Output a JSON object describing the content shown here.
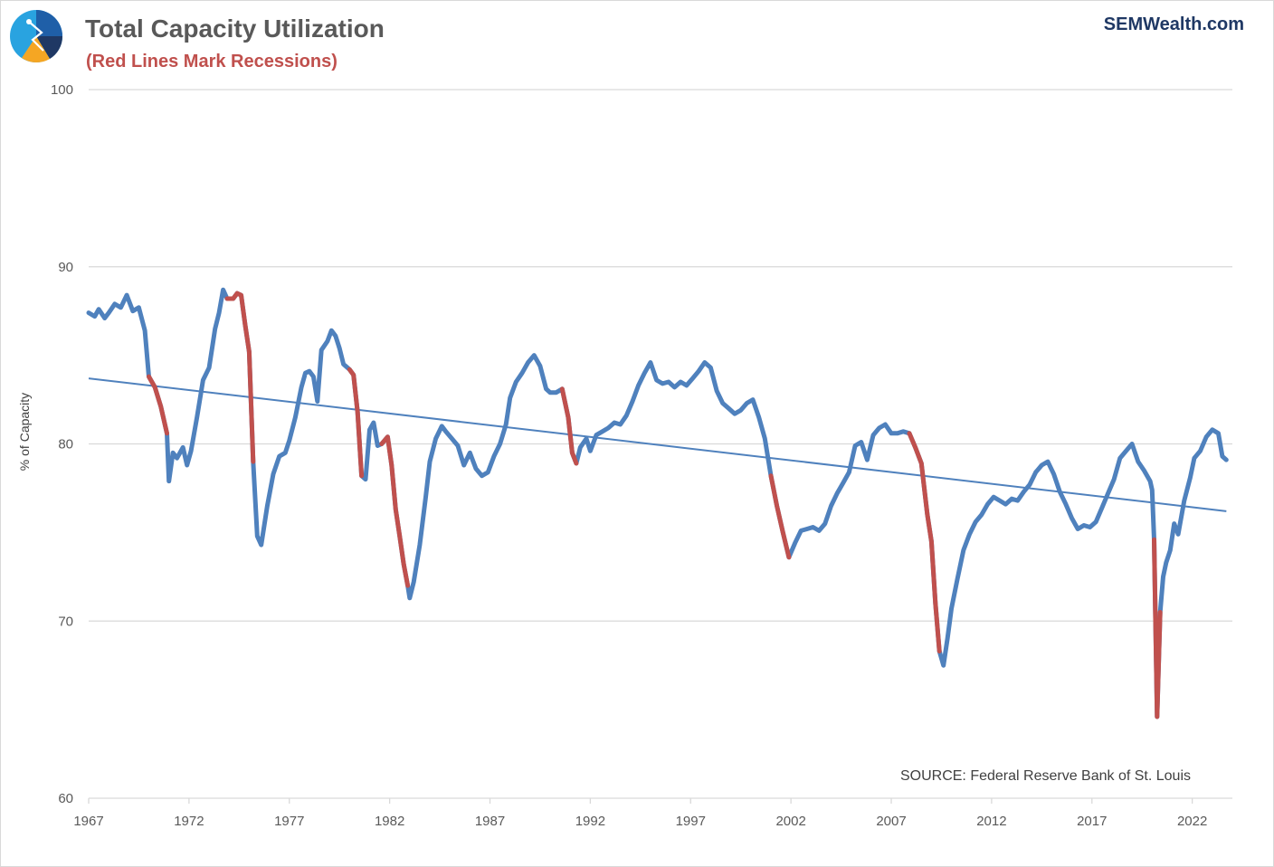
{
  "header": {
    "title": "Total Capacity Utilization",
    "subtitle": "(Red Lines Mark Recessions)",
    "brand": "SEMWealth.com",
    "logo_icon": "sem-wealth-logo-icon"
  },
  "colors": {
    "series": "#4f81bd",
    "recession": "#c0504d",
    "trend": "#4f81bd",
    "grid": "#d9d9d9",
    "title": "#595959",
    "subtitle": "#c0504d",
    "brand": "#1f3864"
  },
  "chart_data": {
    "type": "line",
    "title": "Total Capacity Utilization",
    "subtitle": "(Red Lines Mark Recessions)",
    "xlabel": "",
    "ylabel": "% of Capacity",
    "xlim": [
      1967,
      2024
    ],
    "ylim": [
      60,
      100
    ],
    "x_ticks": [
      1967,
      1972,
      1977,
      1982,
      1987,
      1992,
      1997,
      2002,
      2007,
      2012,
      2017,
      2022
    ],
    "y_ticks": [
      60,
      70,
      80,
      90,
      100
    ],
    "grid": "horizontal",
    "legend": "none",
    "annotation": "SOURCE:  Federal Reserve Bank of St. Louis",
    "series": [
      {
        "name": "Total Capacity Utilization",
        "points": [
          [
            1967.0,
            87.4
          ],
          [
            1967.3,
            87.2
          ],
          [
            1967.5,
            87.6
          ],
          [
            1967.8,
            87.1
          ],
          [
            1968.0,
            87.4
          ],
          [
            1968.3,
            87.9
          ],
          [
            1968.6,
            87.7
          ],
          [
            1968.9,
            88.4
          ],
          [
            1969.2,
            87.5
          ],
          [
            1969.5,
            87.7
          ],
          [
            1969.8,
            86.4
          ],
          [
            1970.0,
            83.8
          ],
          [
            1970.3,
            83.2
          ],
          [
            1970.6,
            82.1
          ],
          [
            1970.9,
            80.6
          ],
          [
            1971.0,
            77.9
          ],
          [
            1971.2,
            79.5
          ],
          [
            1971.4,
            79.2
          ],
          [
            1971.7,
            79.8
          ],
          [
            1971.9,
            78.8
          ],
          [
            1972.1,
            79.6
          ],
          [
            1972.4,
            81.5
          ],
          [
            1972.7,
            83.6
          ],
          [
            1973.0,
            84.3
          ],
          [
            1973.3,
            86.5
          ],
          [
            1973.5,
            87.4
          ],
          [
            1973.7,
            88.7
          ],
          [
            1973.9,
            88.2
          ],
          [
            1974.2,
            88.2
          ],
          [
            1974.4,
            88.5
          ],
          [
            1974.6,
            88.4
          ],
          [
            1974.8,
            86.7
          ],
          [
            1975.0,
            85.2
          ],
          [
            1975.2,
            79.0
          ],
          [
            1975.4,
            74.8
          ],
          [
            1975.6,
            74.3
          ],
          [
            1975.9,
            76.5
          ],
          [
            1976.2,
            78.3
          ],
          [
            1976.5,
            79.3
          ],
          [
            1976.8,
            79.5
          ],
          [
            1977.0,
            80.2
          ],
          [
            1977.3,
            81.5
          ],
          [
            1977.6,
            83.2
          ],
          [
            1977.8,
            84.0
          ],
          [
            1978.0,
            84.1
          ],
          [
            1978.2,
            83.8
          ],
          [
            1978.4,
            82.4
          ],
          [
            1978.6,
            85.3
          ],
          [
            1978.9,
            85.8
          ],
          [
            1979.1,
            86.4
          ],
          [
            1979.3,
            86.1
          ],
          [
            1979.5,
            85.4
          ],
          [
            1979.7,
            84.5
          ],
          [
            1980.0,
            84.2
          ],
          [
            1980.2,
            83.9
          ],
          [
            1980.4,
            81.8
          ],
          [
            1980.6,
            78.2
          ],
          [
            1980.8,
            78.0
          ],
          [
            1981.0,
            80.8
          ],
          [
            1981.2,
            81.2
          ],
          [
            1981.4,
            79.9
          ],
          [
            1981.6,
            80.0
          ],
          [
            1981.9,
            80.4
          ],
          [
            1982.1,
            78.8
          ],
          [
            1982.3,
            76.3
          ],
          [
            1982.5,
            74.8
          ],
          [
            1982.7,
            73.2
          ],
          [
            1982.9,
            72.0
          ],
          [
            1983.0,
            71.3
          ],
          [
            1983.2,
            72.2
          ],
          [
            1983.5,
            74.3
          ],
          [
            1983.8,
            77.0
          ],
          [
            1984.0,
            79.0
          ],
          [
            1984.3,
            80.3
          ],
          [
            1984.6,
            81.0
          ],
          [
            1984.8,
            80.7
          ],
          [
            1985.1,
            80.3
          ],
          [
            1985.4,
            79.9
          ],
          [
            1985.7,
            78.8
          ],
          [
            1986.0,
            79.5
          ],
          [
            1986.3,
            78.6
          ],
          [
            1986.6,
            78.2
          ],
          [
            1986.9,
            78.4
          ],
          [
            1987.2,
            79.3
          ],
          [
            1987.5,
            80.0
          ],
          [
            1987.8,
            81.1
          ],
          [
            1988.0,
            82.6
          ],
          [
            1988.3,
            83.5
          ],
          [
            1988.6,
            84.0
          ],
          [
            1988.9,
            84.6
          ],
          [
            1989.2,
            85.0
          ],
          [
            1989.5,
            84.4
          ],
          [
            1989.8,
            83.1
          ],
          [
            1990.0,
            82.9
          ],
          [
            1990.3,
            82.9
          ],
          [
            1990.6,
            83.1
          ],
          [
            1990.9,
            81.5
          ],
          [
            1991.1,
            79.5
          ],
          [
            1991.3,
            78.9
          ],
          [
            1991.5,
            79.8
          ],
          [
            1991.8,
            80.3
          ],
          [
            1992.0,
            79.6
          ],
          [
            1992.3,
            80.5
          ],
          [
            1992.6,
            80.7
          ],
          [
            1992.9,
            80.9
          ],
          [
            1993.2,
            81.2
          ],
          [
            1993.5,
            81.1
          ],
          [
            1993.8,
            81.6
          ],
          [
            1994.1,
            82.4
          ],
          [
            1994.4,
            83.3
          ],
          [
            1994.7,
            84.0
          ],
          [
            1995.0,
            84.6
          ],
          [
            1995.3,
            83.6
          ],
          [
            1995.6,
            83.4
          ],
          [
            1995.9,
            83.5
          ],
          [
            1996.2,
            83.2
          ],
          [
            1996.5,
            83.5
          ],
          [
            1996.8,
            83.3
          ],
          [
            1997.1,
            83.7
          ],
          [
            1997.4,
            84.1
          ],
          [
            1997.7,
            84.6
          ],
          [
            1998.0,
            84.3
          ],
          [
            1998.3,
            83.0
          ],
          [
            1998.6,
            82.3
          ],
          [
            1998.9,
            82.0
          ],
          [
            1999.2,
            81.7
          ],
          [
            1999.5,
            81.9
          ],
          [
            1999.8,
            82.3
          ],
          [
            2000.1,
            82.5
          ],
          [
            2000.4,
            81.5
          ],
          [
            2000.7,
            80.3
          ],
          [
            2001.0,
            78.2
          ],
          [
            2001.3,
            76.5
          ],
          [
            2001.6,
            75.0
          ],
          [
            2001.9,
            73.6
          ],
          [
            2002.2,
            74.4
          ],
          [
            2002.5,
            75.1
          ],
          [
            2002.8,
            75.2
          ],
          [
            2003.1,
            75.3
          ],
          [
            2003.4,
            75.1
          ],
          [
            2003.7,
            75.5
          ],
          [
            2004.0,
            76.5
          ],
          [
            2004.3,
            77.2
          ],
          [
            2004.6,
            77.8
          ],
          [
            2004.9,
            78.4
          ],
          [
            2005.2,
            79.9
          ],
          [
            2005.5,
            80.1
          ],
          [
            2005.8,
            79.1
          ],
          [
            2006.1,
            80.5
          ],
          [
            2006.4,
            80.9
          ],
          [
            2006.7,
            81.1
          ],
          [
            2007.0,
            80.6
          ],
          [
            2007.3,
            80.6
          ],
          [
            2007.6,
            80.7
          ],
          [
            2007.9,
            80.6
          ],
          [
            2008.2,
            79.8
          ],
          [
            2008.5,
            78.9
          ],
          [
            2008.8,
            76.0
          ],
          [
            2009.0,
            74.5
          ],
          [
            2009.2,
            71.0
          ],
          [
            2009.4,
            68.3
          ],
          [
            2009.6,
            67.5
          ],
          [
            2009.8,
            69.0
          ],
          [
            2010.0,
            70.7
          ],
          [
            2010.3,
            72.4
          ],
          [
            2010.6,
            74.0
          ],
          [
            2010.9,
            74.9
          ],
          [
            2011.2,
            75.6
          ],
          [
            2011.5,
            76.0
          ],
          [
            2011.8,
            76.6
          ],
          [
            2012.1,
            77.0
          ],
          [
            2012.4,
            76.8
          ],
          [
            2012.7,
            76.6
          ],
          [
            2013.0,
            76.9
          ],
          [
            2013.3,
            76.8
          ],
          [
            2013.6,
            77.3
          ],
          [
            2013.9,
            77.7
          ],
          [
            2014.2,
            78.4
          ],
          [
            2014.5,
            78.8
          ],
          [
            2014.8,
            79.0
          ],
          [
            2015.1,
            78.3
          ],
          [
            2015.4,
            77.3
          ],
          [
            2015.7,
            76.6
          ],
          [
            2016.0,
            75.8
          ],
          [
            2016.3,
            75.2
          ],
          [
            2016.6,
            75.4
          ],
          [
            2016.9,
            75.3
          ],
          [
            2017.2,
            75.6
          ],
          [
            2017.5,
            76.4
          ],
          [
            2017.8,
            77.2
          ],
          [
            2018.1,
            78.0
          ],
          [
            2018.4,
            79.2
          ],
          [
            2018.7,
            79.6
          ],
          [
            2019.0,
            80.0
          ],
          [
            2019.3,
            79.0
          ],
          [
            2019.6,
            78.5
          ],
          [
            2019.9,
            77.9
          ],
          [
            2020.0,
            77.4
          ],
          [
            2020.1,
            74.6
          ],
          [
            2020.25,
            64.6
          ],
          [
            2020.4,
            70.5
          ],
          [
            2020.55,
            72.5
          ],
          [
            2020.7,
            73.3
          ],
          [
            2020.9,
            74.0
          ],
          [
            2021.1,
            75.5
          ],
          [
            2021.3,
            74.9
          ],
          [
            2021.6,
            76.8
          ],
          [
            2021.9,
            78.1
          ],
          [
            2022.1,
            79.2
          ],
          [
            2022.4,
            79.6
          ],
          [
            2022.7,
            80.4
          ],
          [
            2023.0,
            80.8
          ],
          [
            2023.3,
            80.6
          ],
          [
            2023.5,
            79.3
          ],
          [
            2023.7,
            79.1
          ]
        ]
      }
    ],
    "recessions": [
      [
        1970.0,
        1970.9
      ],
      [
        1973.9,
        1975.2
      ],
      [
        1980.0,
        1980.6
      ],
      [
        1981.6,
        1982.9
      ],
      [
        1990.6,
        1991.3
      ],
      [
        2001.0,
        2001.9
      ],
      [
        2007.9,
        2009.5
      ],
      [
        2020.1,
        2020.4
      ]
    ],
    "trendline": {
      "x": [
        1967.0,
        2023.7
      ],
      "y": [
        83.7,
        76.2
      ]
    }
  }
}
